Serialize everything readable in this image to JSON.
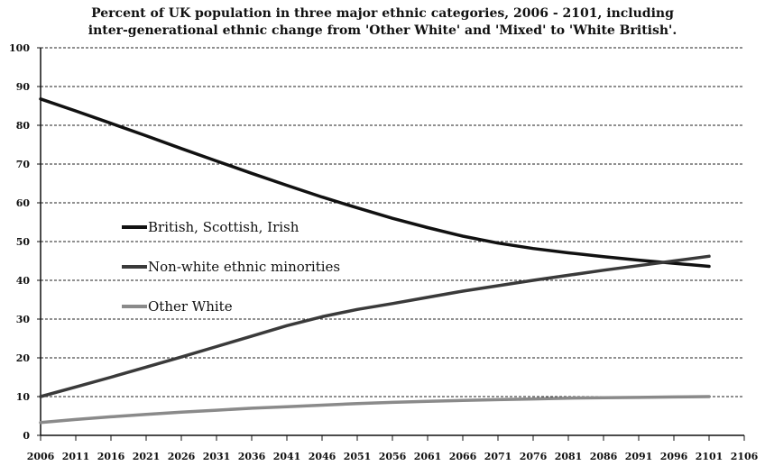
{
  "chart_data": {
    "type": "line",
    "title_line1": "Percent of UK population in three major ethnic categories, 2006 - 2101, including",
    "title_line2": "inter-generational ethnic change from 'Other White' and 'Mixed' to 'White British'.",
    "xlabel": "",
    "ylabel": "",
    "x_ticks": [
      2006,
      2011,
      2016,
      2021,
      2026,
      2031,
      2036,
      2041,
      2046,
      2051,
      2056,
      2061,
      2066,
      2071,
      2076,
      2081,
      2086,
      2091,
      2096,
      2101,
      2106
    ],
    "y_ticks": [
      0,
      10,
      20,
      30,
      40,
      50,
      60,
      70,
      80,
      90,
      100
    ],
    "xlim": [
      2006,
      2106
    ],
    "ylim": [
      0,
      100
    ],
    "grid": "horizontal dashed",
    "legend_position": "left-middle",
    "series": [
      {
        "name": "British, Scottish, Irish",
        "color": "#111111",
        "x": [
          2006,
          2011,
          2016,
          2021,
          2026,
          2031,
          2036,
          2041,
          2046,
          2051,
          2056,
          2061,
          2066,
          2071,
          2076,
          2081,
          2086,
          2091,
          2096,
          2101
        ],
        "values": [
          86.8,
          83.7,
          80.5,
          77.3,
          74.0,
          70.8,
          67.6,
          64.5,
          61.5,
          58.7,
          56.0,
          53.6,
          51.4,
          49.6,
          48.2,
          47.1,
          46.1,
          45.2,
          44.4,
          43.6
        ]
      },
      {
        "name": "Non-white ethnic minorities",
        "color": "#3a3a3a",
        "x": [
          2006,
          2011,
          2016,
          2021,
          2026,
          2031,
          2036,
          2041,
          2046,
          2051,
          2056,
          2061,
          2066,
          2071,
          2076,
          2081,
          2086,
          2091,
          2096,
          2101
        ],
        "values": [
          10.0,
          12.5,
          15.0,
          17.6,
          20.2,
          22.9,
          25.6,
          28.3,
          30.6,
          32.5,
          34.0,
          35.6,
          37.2,
          38.6,
          40.0,
          41.3,
          42.6,
          43.8,
          45.0,
          46.2
        ]
      },
      {
        "name": "Other White",
        "color": "#8a8a8a",
        "x": [
          2006,
          2011,
          2016,
          2021,
          2026,
          2031,
          2036,
          2041,
          2046,
          2051,
          2056,
          2061,
          2066,
          2071,
          2076,
          2081,
          2086,
          2091,
          2096,
          2101
        ],
        "values": [
          3.3,
          4.1,
          4.8,
          5.4,
          6.0,
          6.5,
          7.0,
          7.4,
          7.8,
          8.2,
          8.5,
          8.8,
          9.0,
          9.2,
          9.4,
          9.6,
          9.7,
          9.8,
          9.9,
          10.0
        ]
      }
    ]
  }
}
